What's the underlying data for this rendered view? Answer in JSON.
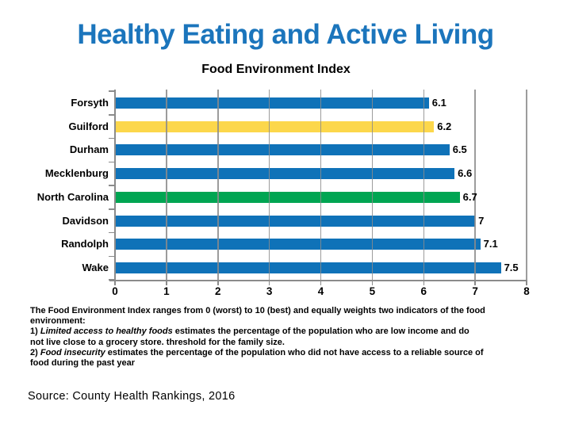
{
  "header": {
    "title": "Healthy Eating and Active Living"
  },
  "chart_data": {
    "type": "bar",
    "orientation": "horizontal",
    "title": "Food Environment Index",
    "categories": [
      "Forsyth",
      "Guilford",
      "Durham",
      "Mecklenburg",
      "North Carolina",
      "Davidson",
      "Randolph",
      "Wake"
    ],
    "values": [
      6.1,
      6.2,
      6.5,
      6.6,
      6.7,
      7,
      7.1,
      7.5
    ],
    "value_labels": [
      "6.1",
      "6.2",
      "6.5",
      "6.6",
      "6.7",
      "7",
      "7.1",
      "7.5"
    ],
    "bar_colors": [
      "#0f72b8",
      "#fcd74b",
      "#0f72b8",
      "#0f72b8",
      "#00a552",
      "#0f72b8",
      "#0f72b8",
      "#0f72b8"
    ],
    "xlim": [
      0,
      8
    ],
    "x_tick_labels": [
      "0",
      "1",
      "2",
      "3",
      "4",
      "5",
      "6",
      "7",
      "8"
    ],
    "grid": true,
    "gridline_color": "#8b8b8b",
    "axis_color": "#8b8b8b",
    "legend": "none"
  },
  "footnote": {
    "lines": [
      [
        {
          "t": "The Food Environment Index ranges from 0 (worst) to 10 (best) and equally weights two indicators of the food",
          "i": false
        }
      ],
      [
        {
          "t": "environment:",
          "i": false
        }
      ],
      [
        {
          "t": "1) ",
          "i": false
        },
        {
          "t": "Limited access to healthy foods",
          "i": true
        },
        {
          "t": " estimates the percentage of the population who are low income and do",
          "i": false
        }
      ],
      [
        {
          "t": "not live close to a grocery store. threshold for the family size.",
          "i": false
        }
      ],
      [
        {
          "t": "2) ",
          "i": false
        },
        {
          "t": "Food insecurity",
          "i": true
        },
        {
          "t": " estimates the percentage of the population who did not have access to a reliable source of",
          "i": false
        }
      ],
      [
        {
          "t": "food during the past year",
          "i": false
        }
      ]
    ]
  },
  "footer": {
    "source": "Source: County Health Rankings, 2016"
  },
  "colors": {
    "title_blue": "#1b75bc",
    "text_black": "#000000"
  }
}
